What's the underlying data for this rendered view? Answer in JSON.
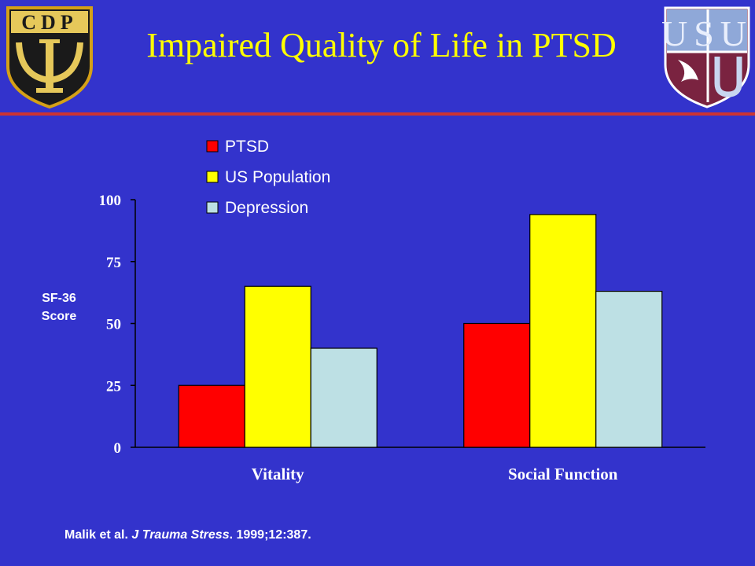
{
  "header": {
    "title": "Impaired Quality of Life in PTSD",
    "logo_left_text": "CDP",
    "logo_right_text": "USU"
  },
  "colors": {
    "background": "#3333cc",
    "title": "#ffff00",
    "rule": "#cc3333",
    "ptsd": "#ff0000",
    "us_population": "#ffff00",
    "depression": "#bde0e4"
  },
  "chart_data": {
    "type": "bar",
    "title": "",
    "xlabel": "",
    "ylabel": "SF-36 Score",
    "ylabel_lines": [
      "SF-36",
      "Score"
    ],
    "ylim": [
      0,
      100
    ],
    "yticks": [
      0,
      25,
      50,
      75,
      100
    ],
    "grid": false,
    "legend_position": "top",
    "categories": [
      "Vitality",
      "Social Function"
    ],
    "series": [
      {
        "name": "PTSD",
        "color": "#ff0000",
        "values": [
          25,
          50
        ]
      },
      {
        "name": "US Population",
        "color": "#ffff00",
        "values": [
          65,
          94
        ]
      },
      {
        "name": "Depression",
        "color": "#bde0e4",
        "values": [
          40,
          63
        ]
      }
    ]
  },
  "citation": {
    "authors": "Malik et al. ",
    "journal": "J Trauma Stress",
    "rest": ". 1999;12:387."
  }
}
